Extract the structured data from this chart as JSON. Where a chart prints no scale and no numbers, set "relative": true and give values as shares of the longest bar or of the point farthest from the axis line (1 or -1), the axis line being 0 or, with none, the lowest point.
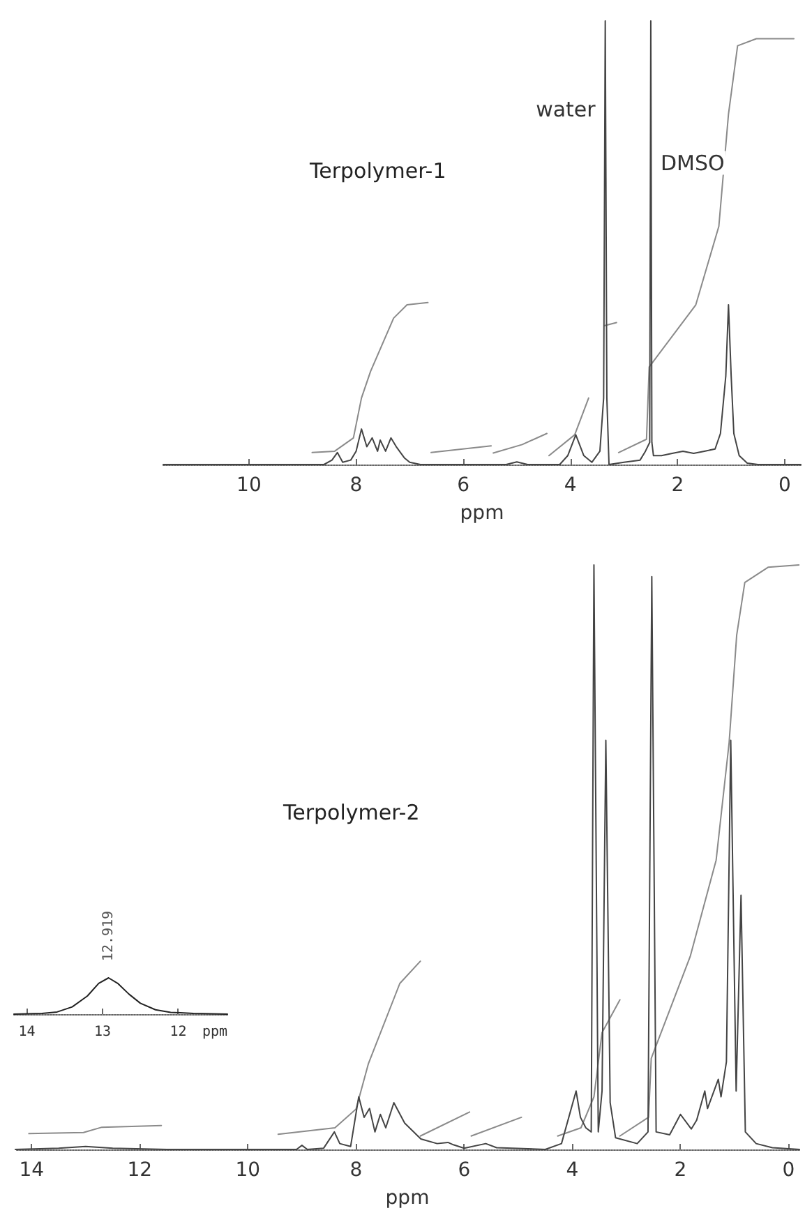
{
  "chart_data": [
    {
      "type": "line",
      "title": "Terpolymer-1",
      "xlabel": "ppm",
      "relative": true,
      "marker": "none",
      "xlim": [
        11.6,
        -0.3
      ],
      "xticks": [
        10,
        8,
        6,
        4,
        2,
        0
      ],
      "annotations": [
        {
          "text": "water",
          "x": 3.35,
          "y": 0.8
        },
        {
          "text": "DMSO",
          "x": 2.5,
          "y": 0.68
        }
      ],
      "series": [
        {
          "color": "#444444",
          "x": [
            11.6,
            8.6,
            8.45,
            8.35,
            8.25,
            8.1,
            8.0,
            7.9,
            7.8,
            7.7,
            7.6,
            7.55,
            7.45,
            7.35,
            7.25,
            7.1,
            7.0,
            6.8,
            5.2,
            5.0,
            4.8,
            4.2,
            4.05,
            3.9,
            3.75,
            3.6,
            3.45,
            3.38,
            3.35,
            3.32,
            3.28,
            3.0,
            2.7,
            2.6,
            2.52,
            2.5,
            2.48,
            2.45,
            2.3,
            2.1,
            1.9,
            1.7,
            1.5,
            1.3,
            1.2,
            1.1,
            1.05,
            1.0,
            0.95,
            0.85,
            0.7,
            0.5,
            -0.3
          ],
          "values": [
            0,
            0,
            0.01,
            0.027,
            0.005,
            0.01,
            0.03,
            0.08,
            0.04,
            0.06,
            0.03,
            0.055,
            0.03,
            0.06,
            0.04,
            0.015,
            0.005,
            0,
            0,
            0.006,
            0,
            0,
            0.02,
            0.067,
            0.02,
            0.005,
            0.03,
            0.15,
            1,
            0.15,
            0,
            0.005,
            0.01,
            0.03,
            0.05,
            1,
            0.05,
            0.02,
            0.02,
            0.025,
            0.03,
            0.025,
            0.03,
            0.035,
            0.07,
            0.2,
            0.36,
            0.2,
            0.07,
            0.02,
            0.003,
            0,
            0
          ]
        },
        {
          "color": "#8a8a8a",
          "x": [
            8.82,
            8.4,
            8.05,
            7.9,
            7.73,
            7.3,
            7.05,
            6.66
          ],
          "values": [
            0.027,
            0.03,
            0.06,
            0.15,
            0.21,
            0.33,
            0.36,
            0.365
          ]
        },
        {
          "color": "#8a8a8a",
          "x": [
            6.6,
            5.48
          ],
          "values": [
            0.027,
            0.042
          ]
        },
        {
          "color": "#8a8a8a",
          "x": [
            5.44,
            4.9,
            4.44
          ],
          "values": [
            0.026,
            0.045,
            0.07
          ]
        },
        {
          "color": "#8a8a8a",
          "x": [
            4.4,
            3.92,
            3.66
          ],
          "values": [
            0.02,
            0.067,
            0.15
          ]
        },
        {
          "color": "#8a8a8a",
          "x": [
            3.37,
            3.14
          ],
          "values": [
            0.313,
            0.32
          ]
        },
        {
          "color": "#8a8a8a",
          "x": [
            3.1,
            2.58,
            2.53,
            1.66,
            1.23,
            1.05,
            0.88,
            0.53,
            -0.17
          ],
          "values": [
            0.027,
            0.057,
            0.22,
            0.36,
            0.537,
            0.79,
            0.944,
            0.96,
            0.96
          ]
        }
      ]
    },
    {
      "type": "line",
      "title": "Terpolymer-2",
      "xlabel": "ppm",
      "relative": true,
      "marker": "none",
      "xlim": [
        14.3,
        -0.2
      ],
      "xticks": [
        14,
        12,
        10,
        8,
        6,
        4,
        2,
        0
      ],
      "series": [
        {
          "color": "#444444",
          "x": [
            14.3,
            13.5,
            13.0,
            12.5,
            11.5,
            9.1,
            9.0,
            8.9,
            8.6,
            8.4,
            8.3,
            8.1,
            7.95,
            7.85,
            7.75,
            7.65,
            7.55,
            7.45,
            7.3,
            7.1,
            6.8,
            6.5,
            6.3,
            6.2,
            6.0,
            5.6,
            5.4,
            4.5,
            4.2,
            3.93,
            3.85,
            3.75,
            3.65,
            3.6,
            3.52,
            3.45,
            3.38,
            3.3,
            3.2,
            2.8,
            2.6,
            2.53,
            2.45,
            2.2,
            2.0,
            1.8,
            1.7,
            1.55,
            1.5,
            1.3,
            1.25,
            1.15,
            1.07,
            0.97,
            0.88,
            0.8,
            0.6,
            0.3,
            -0.2
          ],
          "values": [
            0,
            0.002,
            0.005,
            0.002,
            0,
            0,
            0.007,
            0,
            0.002,
            0.03,
            0.01,
            0.005,
            0.09,
            0.055,
            0.07,
            0.03,
            0.06,
            0.037,
            0.08,
            0.045,
            0.018,
            0.01,
            0.012,
            0.008,
            0.002,
            0.01,
            0.003,
            0,
            0.01,
            0.1,
            0.055,
            0.037,
            0.03,
            1,
            0.03,
            0.1,
            0.7,
            0.08,
            0.02,
            0.01,
            0.03,
            0.98,
            0.03,
            0.025,
            0.06,
            0.035,
            0.05,
            0.1,
            0.07,
            0.12,
            0.09,
            0.15,
            0.7,
            0.1,
            0.435,
            0.03,
            0.01,
            0.003,
            0
          ]
        },
        {
          "color": "#8a8a8a",
          "x": [
            14.05,
            13.04,
            12.7,
            11.6
          ],
          "values": [
            0.027,
            0.029,
            0.038,
            0.041
          ]
        },
        {
          "color": "#8a8a8a",
          "x": [
            9.44,
            8.39,
            8.0,
            7.77,
            7.19,
            6.81
          ],
          "values": [
            0.026,
            0.037,
            0.069,
            0.147,
            0.284,
            0.322
          ]
        },
        {
          "color": "#8a8a8a",
          "x": [
            6.81,
            5.9
          ],
          "values": [
            0.023,
            0.064
          ]
        },
        {
          "color": "#8a8a8a",
          "x": [
            5.87,
            4.94
          ],
          "values": [
            0.023,
            0.055
          ]
        },
        {
          "color": "#8a8a8a",
          "x": [
            4.27,
            3.84,
            3.6,
            3.45,
            3.12
          ],
          "values": [
            0.023,
            0.037,
            0.09,
            0.2,
            0.256
          ]
        },
        {
          "color": "#8a8a8a",
          "x": [
            3.12,
            2.59,
            2.54,
            1.82,
            1.34,
            1.1,
            0.96,
            0.81,
            0.38,
            -0.19
          ],
          "values": [
            0.023,
            0.055,
            0.156,
            0.33,
            0.495,
            0.696,
            0.88,
            0.97,
            0.996,
            1
          ]
        }
      ]
    },
    {
      "type": "line",
      "xlabel": "ppm",
      "relative": true,
      "marker": "none",
      "xlim": [
        14.17,
        11.35
      ],
      "xticks": [
        14,
        13,
        12
      ],
      "annotations": [
        {
          "text": "12.919",
          "x": 12.919,
          "y": 1
        }
      ],
      "series": [
        {
          "color": "#222222",
          "x": [
            14.17,
            13.8,
            13.6,
            13.4,
            13.2,
            13.05,
            12.92,
            12.8,
            12.65,
            12.5,
            12.3,
            12.1,
            11.8,
            11.35
          ],
          "values": [
            0,
            0.02,
            0.06,
            0.2,
            0.5,
            0.85,
            1,
            0.85,
            0.55,
            0.3,
            0.12,
            0.05,
            0.02,
            0
          ]
        }
      ]
    }
  ]
}
